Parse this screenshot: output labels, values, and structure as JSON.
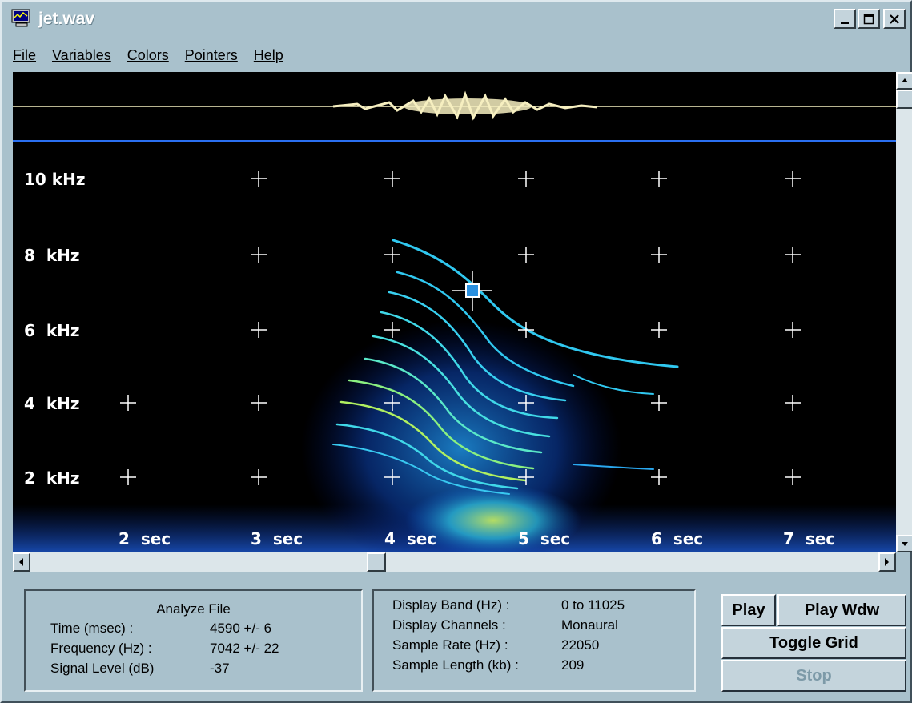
{
  "window": {
    "title": "jet.wav"
  },
  "menu": [
    "File",
    "Variables",
    "Colors",
    "Pointers",
    "Help"
  ],
  "spectrogram": {
    "freq_labels": [
      "10 kHz",
      "8  kHz",
      "6  kHz",
      "4  kHz",
      "2  kHz"
    ],
    "time_labels": [
      "2  sec",
      "3  sec",
      "4  sec",
      "5  sec",
      "6  sec",
      "7  sec"
    ]
  },
  "analyze": {
    "title": "Analyze File",
    "rows": [
      {
        "label": "Time (msec) :",
        "value": "4590 +/- 6"
      },
      {
        "label": "Frequency (Hz) :",
        "value": "7042 +/- 22"
      },
      {
        "label": "Signal Level (dB)",
        "value": "-37"
      }
    ]
  },
  "display": {
    "rows": [
      {
        "label": "Display Band (Hz) :",
        "value": "0 to 11025"
      },
      {
        "label": "Display Channels :",
        "value": "Monaural"
      },
      {
        "label": "Sample Rate (Hz) :",
        "value": "22050"
      },
      {
        "label": "Sample Length (kb) :",
        "value": "209"
      }
    ]
  },
  "buttons": {
    "play": "Play",
    "play_wdw": "Play Wdw",
    "toggle_grid": "Toggle Grid",
    "stop": "Stop"
  }
}
